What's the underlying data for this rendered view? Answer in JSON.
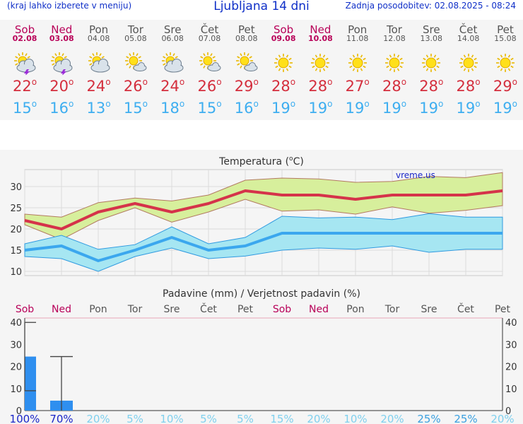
{
  "header": {
    "left_text": "(kraj lahko izberete v meniju)",
    "title": "Ljubljana 14 dni",
    "updated": "Zadnja posodobitev: 02.08.2025 - 08:24"
  },
  "days": [
    {
      "name": "Sob",
      "date": "02.08",
      "weekend": true,
      "icon": "sun-cloud-thunder-icon",
      "tmax": "22",
      "tmin": "15"
    },
    {
      "name": "Ned",
      "date": "03.08",
      "weekend": true,
      "icon": "sun-cloud-thunder-icon",
      "tmax": "20",
      "tmin": "16"
    },
    {
      "name": "Pon",
      "date": "04.08",
      "weekend": false,
      "icon": "sun-cloud-icon",
      "tmax": "24",
      "tmin": "13"
    },
    {
      "name": "Tor",
      "date": "05.08",
      "weekend": false,
      "icon": "sun-small-cloud-icon",
      "tmax": "26",
      "tmin": "15"
    },
    {
      "name": "Sre",
      "date": "06.08",
      "weekend": false,
      "icon": "sun-cloud-icon",
      "tmax": "24",
      "tmin": "18"
    },
    {
      "name": "Čet",
      "date": "07.08",
      "weekend": false,
      "icon": "sun-small-cloud-icon",
      "tmax": "26",
      "tmin": "15"
    },
    {
      "name": "Pet",
      "date": "08.08",
      "weekend": false,
      "icon": "sun-small-cloud-icon",
      "tmax": "29",
      "tmin": "16"
    },
    {
      "name": "Sob",
      "date": "09.08",
      "weekend": true,
      "icon": "sun-icon",
      "tmax": "28",
      "tmin": "19"
    },
    {
      "name": "Ned",
      "date": "10.08",
      "weekend": true,
      "icon": "sun-icon",
      "tmax": "28",
      "tmin": "19"
    },
    {
      "name": "Pon",
      "date": "11.08",
      "weekend": false,
      "icon": "sun-icon",
      "tmax": "27",
      "tmin": "19"
    },
    {
      "name": "Tor",
      "date": "12.08",
      "weekend": false,
      "icon": "sun-icon",
      "tmax": "28",
      "tmin": "19"
    },
    {
      "name": "Sre",
      "date": "13.08",
      "weekend": false,
      "icon": "sun-icon",
      "tmax": "28",
      "tmin": "19"
    },
    {
      "name": "Čet",
      "date": "14.08",
      "weekend": false,
      "icon": "sun-icon",
      "tmax": "28",
      "tmin": "19"
    },
    {
      "name": "Pet",
      "date": "15.08",
      "weekend": false,
      "icon": "sun-icon",
      "tmax": "29",
      "tmin": "19"
    }
  ],
  "degree_symbol": "o",
  "colors": {
    "tmax": "#d42e3d",
    "tmin": "#3eaef0",
    "weekend": "#b80058",
    "weekday": "#555555",
    "max_band": "#d7ef9c",
    "min_band": "#a6e6f2",
    "precip_bar": "#2f8fef"
  },
  "chart_data": [
    {
      "type": "line",
      "title": "Temperatura (oC)",
      "watermark": "vreme.us",
      "categories": [
        "Sob",
        "Ned",
        "Pon",
        "Tor",
        "Sre",
        "Čet",
        "Pet",
        "Sob",
        "Ned",
        "Pon",
        "Tor",
        "Sre",
        "Čet",
        "Pet"
      ],
      "ylim": [
        9,
        34
      ],
      "yticks": [
        10,
        15,
        20,
        25,
        30
      ],
      "series": [
        {
          "name": "max",
          "values": [
            22,
            20,
            24,
            26,
            24,
            26,
            29,
            28,
            28,
            27,
            28,
            28,
            28,
            29
          ]
        },
        {
          "name": "max_upper",
          "values": [
            23.5,
            22.8,
            26.2,
            27.3,
            26.6,
            28,
            31.5,
            32,
            31.8,
            31,
            31.2,
            32.4,
            32.1,
            33.3
          ]
        },
        {
          "name": "max_lower",
          "values": [
            21,
            17.5,
            22,
            25,
            21.6,
            24,
            27,
            24.2,
            24.5,
            23.5,
            25.2,
            23.7,
            24.4,
            25.5
          ]
        },
        {
          "name": "min",
          "values": [
            15,
            16,
            12.5,
            15,
            18,
            15,
            16,
            19,
            19,
            19,
            19,
            19,
            19,
            19
          ]
        },
        {
          "name": "min_upper",
          "values": [
            16.5,
            18.5,
            15.2,
            16.3,
            20.5,
            16.5,
            18,
            23,
            22.6,
            22.8,
            22.2,
            23.6,
            22.8,
            22.8
          ]
        },
        {
          "name": "min_lower",
          "values": [
            13.5,
            13,
            10,
            13.5,
            15.5,
            13,
            13.6,
            15,
            15.5,
            15.2,
            16,
            14.5,
            15.2,
            15.2
          ]
        }
      ]
    },
    {
      "type": "bar",
      "title": "Padavine (mm) / Verjetnost padavin (%)",
      "categories": [
        "Sob",
        "Ned",
        "Pon",
        "Tor",
        "Sre",
        "Čet",
        "Pet",
        "Sob",
        "Ned",
        "Pon",
        "Tor",
        "Sre",
        "Čet",
        "Pet"
      ],
      "ylim": [
        0,
        42
      ],
      "yticks": [
        0,
        10,
        20,
        30,
        40
      ],
      "values": [
        24.5,
        4.5,
        0,
        0,
        0,
        0,
        0,
        0,
        0,
        0,
        0,
        0,
        0,
        0
      ],
      "error_high": [
        40,
        24.5,
        null,
        null,
        null,
        null,
        null,
        null,
        null,
        null,
        null,
        null,
        null,
        null
      ],
      "error_low": [
        9,
        0,
        null,
        null,
        null,
        null,
        null,
        null,
        null,
        null,
        null,
        null,
        null,
        null
      ],
      "probability": [
        "100%",
        "70%",
        "20%",
        "5%",
        "10%",
        "5%",
        "5%",
        "15%",
        "20%",
        "10%",
        "20%",
        "25%",
        "25%",
        "20%"
      ],
      "probability_colors": [
        "#1a26c8",
        "#1a26c8",
        "#7fd0ee",
        "#7fd0ee",
        "#7fd0ee",
        "#7fd0ee",
        "#7fd0ee",
        "#7fd0ee",
        "#7fd0ee",
        "#7fd0ee",
        "#7fd0ee",
        "#3aa0e0",
        "#3aa0e0",
        "#7fd0ee"
      ]
    }
  ]
}
